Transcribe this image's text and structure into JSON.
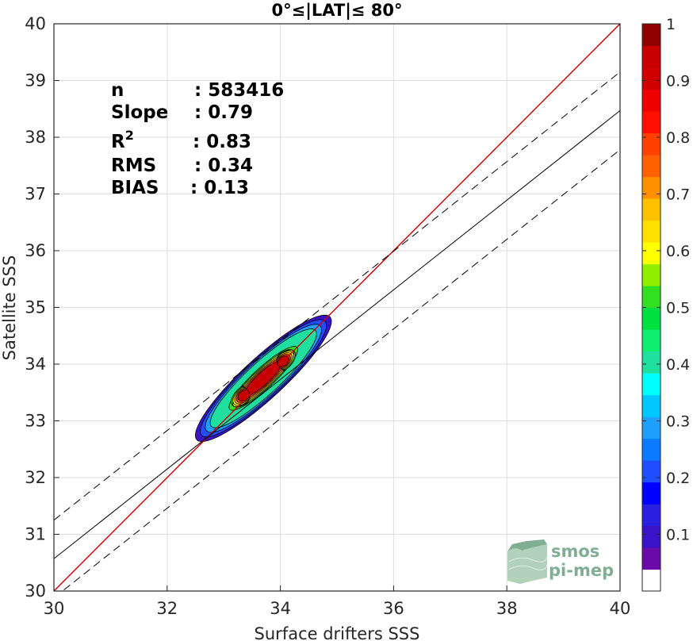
{
  "chart_data": {
    "type": "heatmap",
    "title": "0°≤|LAT|≤ 80°",
    "xlabel": "Surface drifters SSS",
    "ylabel": "Satellite SSS",
    "xlim": [
      30,
      40
    ],
    "ylim": [
      30,
      40
    ],
    "xticks": [
      "30",
      "32",
      "34",
      "36",
      "38",
      "40"
    ],
    "yticks": [
      "30",
      "31",
      "32",
      "33",
      "34",
      "35",
      "36",
      "37",
      "38",
      "39",
      "40"
    ],
    "grid": true,
    "stats": [
      {
        "label": "n",
        "value": ": 583416"
      },
      {
        "label": "Slope",
        "value": ": 0.79"
      },
      {
        "label": "R",
        "sup": "2",
        "value": ": 0.83"
      },
      {
        "label": "RMS",
        "value": ": 0.34"
      },
      {
        "label": "BIAS",
        "value": ": 0.13"
      }
    ],
    "reference_lines": {
      "identity": {
        "slope": 1.0,
        "intercept": 0.0,
        "color": "#cc0000",
        "style": "solid"
      },
      "fit": {
        "slope": 0.79,
        "intercept": 6.87,
        "color": "#000000",
        "style": "solid"
      },
      "fit_upper": {
        "slope": 0.79,
        "intercept": 7.55,
        "color": "#000000",
        "style": "dashed"
      },
      "fit_lower": {
        "slope": 0.79,
        "intercept": 6.18,
        "color": "#000000",
        "style": "dashed"
      }
    },
    "density_peaks": [
      {
        "x": 33.35,
        "y": 33.45,
        "value": 0.95
      },
      {
        "x": 34.05,
        "y": 34.05,
        "value": 0.9
      }
    ],
    "contour_levels": [
      {
        "value": 0.08,
        "color": "#3a12c8"
      },
      {
        "value": 0.2,
        "color": "#1f4dff"
      },
      {
        "value": 0.3,
        "color": "#1fa0ff"
      },
      {
        "value": 0.45,
        "color": "#20e0a0"
      },
      {
        "value": 0.55,
        "color": "#33e020"
      },
      {
        "value": 0.65,
        "color": "#ffff00"
      },
      {
        "value": 0.75,
        "color": "#ffb000"
      },
      {
        "value": 0.85,
        "color": "#ff4000"
      },
      {
        "value": 0.95,
        "color": "#c80000"
      }
    ],
    "colorbar": {
      "ticks": [
        "0.1",
        "0.2",
        "0.3",
        "0.4",
        "0.5",
        "0.6",
        "0.7",
        "0.8",
        "0.9",
        "1"
      ],
      "range": [
        0,
        1
      ],
      "colors": [
        "#ffffff",
        "#6a0aa8",
        "#3a12c8",
        "#2a20e0",
        "#0000ff",
        "#1f4dff",
        "#0a7aff",
        "#1fa0ff",
        "#00c8ff",
        "#00ffff",
        "#20e0a0",
        "#10f070",
        "#00e040",
        "#33e020",
        "#90f000",
        "#ffff00",
        "#ffe000",
        "#ffc000",
        "#ff9000",
        "#ff6000",
        "#ff4000",
        "#ff1000",
        "#ee0000",
        "#d00000",
        "#c80000",
        "#900000"
      ]
    }
  },
  "logo": {
    "line1": "smos",
    "line2": "pi-mep"
  }
}
